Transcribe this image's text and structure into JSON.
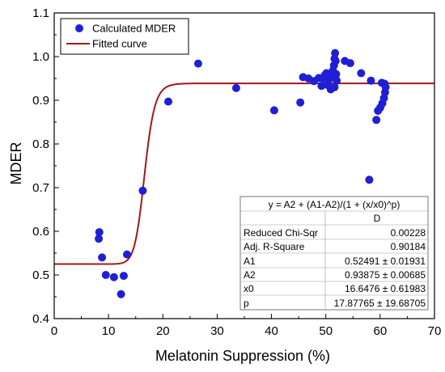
{
  "chart_data": {
    "type": "scatter",
    "xlabel": "Melatonin Suppression (%)",
    "ylabel": "MDER",
    "xlim": [
      0,
      70
    ],
    "ylim": [
      0.4,
      1.1
    ],
    "xticks": [
      0,
      10,
      20,
      30,
      40,
      50,
      60,
      70
    ],
    "yticks": [
      0.4,
      0.5,
      0.6,
      0.7,
      0.8,
      0.9,
      1.0,
      1.1
    ],
    "ytick_labels": [
      "0.4",
      "0.5",
      "0.6",
      "0.7",
      "0.8",
      "0.9",
      "1.0",
      "1.1"
    ],
    "legend_position": "top-left",
    "colors": {
      "points": "#1f1fd6",
      "curve": "#a01818"
    },
    "series": [
      {
        "name": "Calculated MDER",
        "kind": "scatter",
        "points": [
          [
            8.3,
            0.598
          ],
          [
            8.2,
            0.583
          ],
          [
            8.8,
            0.54
          ],
          [
            9.5,
            0.5
          ],
          [
            11.0,
            0.495
          ],
          [
            12.3,
            0.456
          ],
          [
            12.8,
            0.498
          ],
          [
            13.4,
            0.547
          ],
          [
            16.3,
            0.693
          ],
          [
            21.0,
            0.897
          ],
          [
            26.5,
            0.984
          ],
          [
            33.5,
            0.928
          ],
          [
            40.5,
            0.877
          ],
          [
            45.3,
            0.895
          ],
          [
            45.8,
            0.953
          ],
          [
            46.8,
            0.95
          ],
          [
            47.8,
            0.944
          ],
          [
            48.7,
            0.951
          ],
          [
            49.2,
            0.933
          ],
          [
            49.5,
            0.95
          ],
          [
            49.8,
            0.957
          ],
          [
            50.1,
            0.962
          ],
          [
            50.3,
            0.935
          ],
          [
            50.6,
            0.948
          ],
          [
            50.9,
            0.925
          ],
          [
            51.1,
            0.955
          ],
          [
            51.3,
            0.968
          ],
          [
            51.5,
            0.98
          ],
          [
            51.6,
            0.995
          ],
          [
            51.7,
            1.008
          ],
          [
            51.8,
            0.99
          ],
          [
            51.9,
            0.96
          ],
          [
            52.0,
            0.945
          ],
          [
            51.6,
            0.93
          ],
          [
            53.5,
            0.99
          ],
          [
            54.5,
            0.985
          ],
          [
            56.5,
            0.962
          ],
          [
            58.0,
            0.718
          ],
          [
            58.3,
            0.945
          ],
          [
            59.3,
            0.855
          ],
          [
            59.6,
            0.876
          ],
          [
            60.0,
            0.883
          ],
          [
            60.4,
            0.893
          ],
          [
            60.7,
            0.905
          ],
          [
            60.9,
            0.918
          ],
          [
            61.0,
            0.93
          ],
          [
            60.8,
            0.938
          ],
          [
            60.3,
            0.94
          ]
        ]
      },
      {
        "name": "Fitted curve",
        "kind": "line",
        "model": "y = A2 + (A1-A2)/(1 + (x/x0)^p)",
        "params": {
          "A1": 0.52491,
          "A2": 0.93875,
          "x0": 16.6476,
          "p": 17.87765
        },
        "x_range": [
          0,
          70
        ]
      }
    ],
    "fit_table": {
      "header_equation": "y = A2 + (A1-A2)/(1 + (x/x0)^p)",
      "column_header": "D",
      "rows": [
        {
          "label": "Reduced Chi-Sqr",
          "value": "0.00228"
        },
        {
          "label": "Adj. R-Square",
          "value": "0.90184"
        },
        {
          "label": "A1",
          "value": "0.52491 ± 0.01931"
        },
        {
          "label": "A2",
          "value": "0.93875 ± 0.00685"
        },
        {
          "label": "x0",
          "value": "16.6476 ± 0.61983"
        },
        {
          "label": "p",
          "value": "17.87765 ± 19.68705"
        }
      ]
    }
  }
}
